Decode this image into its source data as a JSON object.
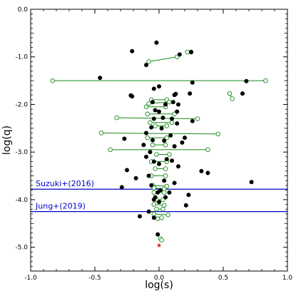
{
  "chart_data": {
    "type": "scatter",
    "xlabel": "log(s)",
    "ylabel": "log(q)",
    "xlim": [
      -1.0,
      1.0
    ],
    "ylim": [
      -5.5,
      0.0
    ],
    "x_ticks": [
      "-1.0",
      "-0.5",
      "0.0",
      "0.5",
      "1.0"
    ],
    "x_tick_values": [
      -1.0,
      -0.5,
      0.0,
      0.5,
      1.0
    ],
    "y_ticks": [
      "0.0",
      "-1.0",
      "-2.0",
      "-3.0",
      "-4.0",
      "-5.0"
    ],
    "y_tick_values": [
      0.0,
      -1.0,
      -2.0,
      -3.0,
      -4.0,
      -5.0
    ],
    "grid": false,
    "colors": {
      "filled": "#000000",
      "open": "#1a8a1a",
      "line": "#1a8a1a",
      "threshold": "#0000cc",
      "star": "#e02020"
    },
    "annotations": [
      {
        "text": "Suzuki+(2016)",
        "y": -3.78
      },
      {
        "text": "Jung+(2019)",
        "y": -4.25
      }
    ],
    "filled_points": [
      [
        -0.02,
        -0.7
      ],
      [
        -0.21,
        -0.88
      ],
      [
        -0.1,
        -1.17
      ],
      [
        0.16,
        -0.95
      ],
      [
        0.25,
        -0.9
      ],
      [
        -0.46,
        -1.44
      ],
      [
        0.68,
        -1.51
      ],
      [
        0.26,
        -1.54
      ],
      [
        -0.04,
        -1.67
      ],
      [
        0.0,
        -1.62
      ],
      [
        -0.22,
        -1.81
      ],
      [
        -0.21,
        -1.83
      ],
      [
        0.12,
        -1.8
      ],
      [
        0.13,
        -1.78
      ],
      [
        0.24,
        -1.77
      ],
      [
        0.65,
        -1.77
      ],
      [
        -0.05,
        -1.95
      ],
      [
        0.05,
        -2.0
      ],
      [
        0.11,
        -1.95
      ],
      [
        0.15,
        -2.0
      ],
      [
        -0.03,
        -2.12
      ],
      [
        0.0,
        -2.15
      ],
      [
        0.14,
        -2.15
      ],
      [
        -0.04,
        -2.3
      ],
      [
        0.03,
        -2.28
      ],
      [
        0.1,
        -2.3
      ],
      [
        0.14,
        -2.4
      ],
      [
        0.26,
        -2.35
      ],
      [
        -0.06,
        -2.48
      ],
      [
        0.02,
        -2.5
      ],
      [
        -0.1,
        -2.6
      ],
      [
        0.09,
        -2.65
      ],
      [
        0.2,
        -2.7
      ],
      [
        -0.27,
        -2.72
      ],
      [
        -0.05,
        -2.75
      ],
      [
        0.04,
        -2.76
      ],
      [
        0.18,
        -2.8
      ],
      [
        -0.12,
        -2.85
      ],
      [
        0.12,
        -2.88
      ],
      [
        -0.07,
        -3.0
      ],
      [
        -0.1,
        -3.1
      ],
      [
        0.06,
        -3.15
      ],
      [
        0.1,
        -3.18
      ],
      [
        -0.04,
        -3.2
      ],
      [
        0.0,
        -3.25
      ],
      [
        0.15,
        -3.3
      ],
      [
        -0.25,
        -3.38
      ],
      [
        0.33,
        -3.4
      ],
      [
        0.38,
        -3.44
      ],
      [
        -0.08,
        -3.5
      ],
      [
        -0.18,
        -3.55
      ],
      [
        0.04,
        -3.6
      ],
      [
        0.72,
        -3.63
      ],
      [
        0.12,
        -3.65
      ],
      [
        -0.06,
        -3.7
      ],
      [
        -0.29,
        -3.74
      ],
      [
        0.01,
        -3.8
      ],
      [
        -0.01,
        -3.85
      ],
      [
        0.08,
        -3.85
      ],
      [
        0.23,
        -3.9
      ],
      [
        -0.03,
        -3.95
      ],
      [
        0.05,
        -3.95
      ],
      [
        -0.04,
        -4.0
      ],
      [
        0.0,
        -4.05
      ],
      [
        0.21,
        -4.12
      ],
      [
        -0.08,
        -4.25
      ],
      [
        -0.15,
        -4.35
      ],
      [
        -0.04,
        -4.38
      ],
      [
        -0.01,
        -4.73
      ]
    ],
    "open_segments": [
      [
        [
          0.25,
          -0.9
        ],
        [
          0.22,
          -0.9
        ]
      ],
      [
        [
          -0.08,
          -1.1
        ],
        [
          0.14,
          -1.0
        ]
      ],
      [
        [
          -0.83,
          -1.5
        ],
        [
          0.83,
          -1.5
        ]
      ],
      [
        [
          0.55,
          -1.77
        ],
        [
          0.57,
          -1.88
        ]
      ],
      [
        [
          -0.06,
          -1.9
        ],
        [
          0.06,
          -1.9
        ]
      ],
      [
        [
          -0.08,
          -1.98
        ],
        [
          0.08,
          -1.95
        ]
      ],
      [
        [
          -0.1,
          -2.05
        ],
        [
          0.05,
          -2.05
        ]
      ],
      [
        [
          -0.09,
          -2.2
        ],
        [
          0.12,
          -2.2
        ]
      ],
      [
        [
          -0.33,
          -2.28
        ],
        [
          0.3,
          -2.3
        ]
      ],
      [
        [
          -0.07,
          -2.38
        ],
        [
          0.1,
          -2.38
        ]
      ],
      [
        [
          -0.03,
          -2.45
        ],
        [
          0.06,
          -2.45
        ]
      ],
      [
        [
          -0.45,
          -2.6
        ],
        [
          0.46,
          -2.62
        ]
      ],
      [
        [
          -0.09,
          -2.7
        ],
        [
          0.06,
          -2.7
        ]
      ],
      [
        [
          -0.05,
          -2.85
        ],
        [
          0.05,
          -2.85
        ]
      ],
      [
        [
          -0.38,
          -2.95
        ],
        [
          0.38,
          -2.95
        ]
      ],
      [
        [
          -0.02,
          -3.05
        ],
        [
          0.08,
          -3.05
        ]
      ],
      [
        [
          -0.06,
          -3.2
        ],
        [
          0.06,
          -3.2
        ]
      ],
      [
        [
          -0.03,
          -3.35
        ],
        [
          0.05,
          -3.35
        ]
      ],
      [
        [
          -0.06,
          -3.5
        ],
        [
          0.05,
          -3.5
        ]
      ],
      [
        [
          -0.05,
          -3.7
        ],
        [
          0.06,
          -3.72
        ]
      ],
      [
        [
          -0.04,
          -3.75
        ],
        [
          0.04,
          -3.78
        ]
      ],
      [
        [
          -0.04,
          -3.85
        ],
        [
          0.04,
          -3.85
        ]
      ],
      [
        [
          -0.02,
          -4.0
        ],
        [
          0.03,
          -4.0
        ]
      ],
      [
        [
          -0.04,
          -4.1
        ],
        [
          0.04,
          -4.12
        ]
      ],
      [
        [
          -0.02,
          -4.2
        ],
        [
          0.03,
          -4.2
        ]
      ],
      [
        [
          -0.04,
          -4.3
        ],
        [
          0.07,
          -4.32
        ]
      ],
      [
        [
          -0.01,
          -4.4
        ],
        [
          0.02,
          -4.38
        ]
      ],
      [
        [
          0.01,
          -4.82
        ],
        [
          0.02,
          -4.85
        ]
      ]
    ],
    "star_point": [
      0.0,
      -4.96
    ]
  }
}
